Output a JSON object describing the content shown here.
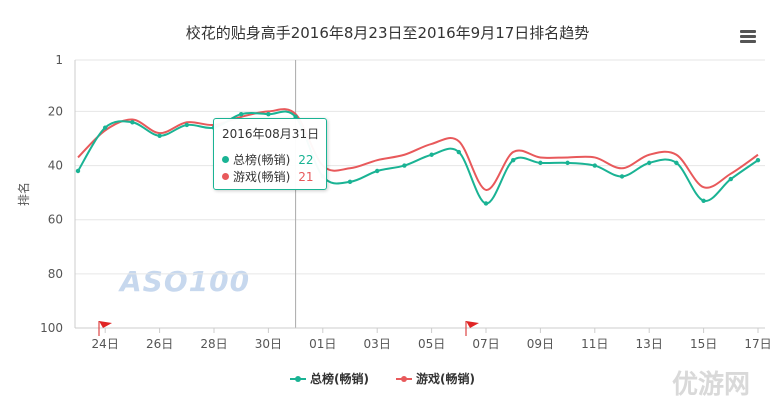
{
  "title": "校花的贴身高手2016年8月23日至2016年9月17日排名趋势",
  "menu_icon": "hamburger-menu-icon",
  "watermark": "ASO100",
  "corner_logo": "优游网",
  "colors": {
    "series1": "#1ab394",
    "series2": "#e8595b",
    "grid": "#e6e6e6",
    "axis": "#cccccc"
  },
  "chart_data": {
    "type": "line",
    "title": "校花的贴身高手2016年8月23日至2016年9月17日排名趋势",
    "ylabel": "排名",
    "y_reversed": true,
    "ylim": [
      1,
      100
    ],
    "yticks": [
      1,
      20,
      40,
      60,
      80,
      100
    ],
    "x": [
      "08/23",
      "08/24",
      "08/25",
      "08/26",
      "08/27",
      "08/28",
      "08/29",
      "08/30",
      "08/31",
      "09/01",
      "09/02",
      "09/03",
      "09/04",
      "09/05",
      "09/06",
      "09/07",
      "09/08",
      "09/09",
      "09/10",
      "09/11",
      "09/12",
      "09/13",
      "09/14",
      "09/15",
      "09/16",
      "09/17"
    ],
    "xtick_labels": [
      "24日",
      "26日",
      "28日",
      "30日",
      "01日",
      "03日",
      "05日",
      "07日",
      "09日",
      "11日",
      "13日",
      "15日",
      "17日"
    ],
    "xtick_index": [
      1,
      3,
      5,
      7,
      9,
      11,
      13,
      15,
      17,
      19,
      21,
      23,
      25
    ],
    "series": [
      {
        "name": "总榜(畅销)",
        "color": "#1ab394",
        "values": [
          42,
          26,
          24,
          29,
          25,
          26,
          21,
          21,
          22,
          44,
          46,
          42,
          40,
          36,
          35,
          54,
          38,
          39,
          39,
          40,
          44,
          39,
          39,
          53,
          45,
          38
        ]
      },
      {
        "name": "游戏(畅销)",
        "color": "#e8595b",
        "values": [
          37,
          27,
          23,
          28,
          24,
          25,
          22,
          20,
          21,
          40,
          41,
          38,
          36,
          32,
          31,
          49,
          35,
          37,
          37,
          37,
          41,
          36,
          36,
          48,
          43,
          36
        ]
      }
    ],
    "flags_at": [
      "08/24",
      "09/06"
    ],
    "legend_position": "bottom-center"
  },
  "tooltip": {
    "date": "2016年08月31日",
    "rows": [
      {
        "name": "总榜(畅销)",
        "value": "22"
      },
      {
        "name": "游戏(畅销)",
        "value": "21"
      }
    ]
  }
}
